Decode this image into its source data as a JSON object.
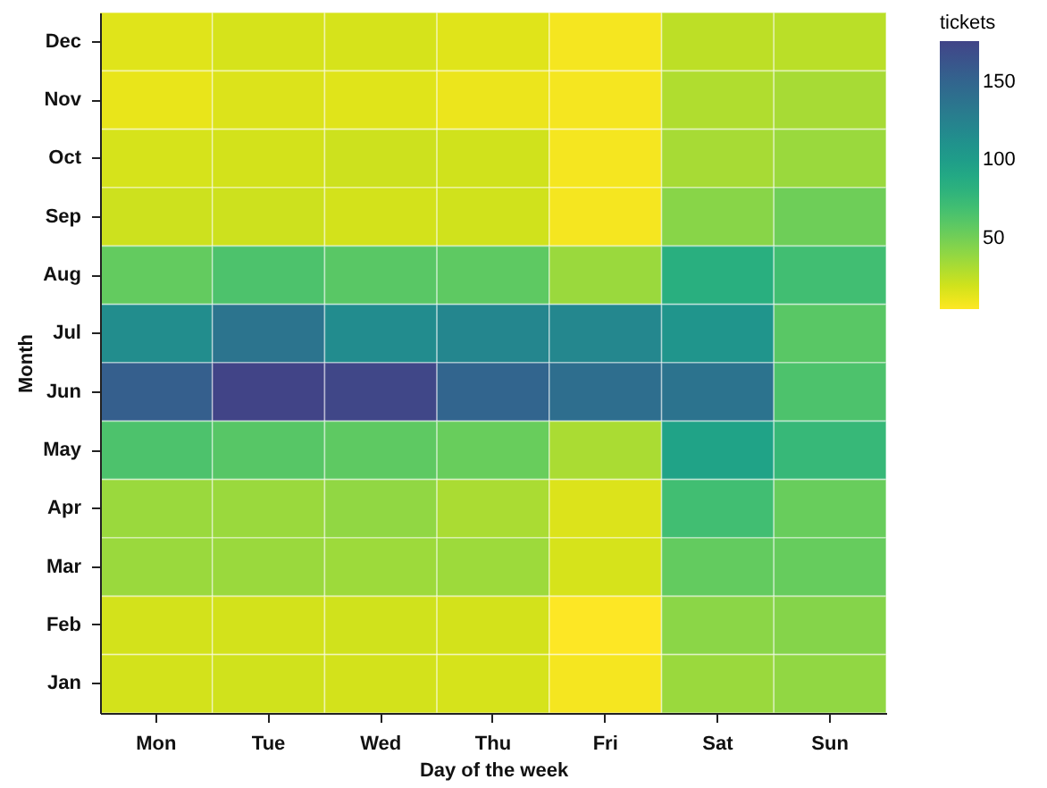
{
  "chart_data": {
    "type": "heatmap",
    "xlabel": "Day of the week",
    "ylabel": "Month",
    "legend_title": "tickets",
    "categories": [
      "Mon",
      "Tue",
      "Wed",
      "Thu",
      "Fri",
      "Sat",
      "Sun"
    ],
    "y_categories": [
      "Dec",
      "Nov",
      "Oct",
      "Sep",
      "Aug",
      "Jul",
      "Jun",
      "May",
      "Apr",
      "Mar",
      "Feb",
      "Jan"
    ],
    "cells": [
      [
        15,
        18,
        18,
        15,
        8,
        26,
        27
      ],
      [
        12,
        16,
        15,
        11,
        8,
        30,
        33
      ],
      [
        18,
        19,
        21,
        20,
        8,
        33,
        37
      ],
      [
        21,
        21,
        19,
        20,
        8,
        43,
        52
      ],
      [
        56,
        65,
        60,
        58,
        37,
        84,
        70
      ],
      [
        115,
        137,
        116,
        121,
        120,
        108,
        60
      ],
      [
        155,
        176,
        174,
        150,
        142,
        138,
        65
      ],
      [
        65,
        61,
        58,
        54,
        32,
        95,
        75
      ],
      [
        37,
        37,
        40,
        32,
        16,
        70,
        54
      ],
      [
        37,
        37,
        36,
        36,
        18,
        56,
        55
      ],
      [
        19,
        19,
        20,
        19,
        5,
        42,
        44
      ],
      [
        19,
        20,
        19,
        18,
        8,
        37,
        40
      ]
    ],
    "clim": [
      5,
      176
    ],
    "cticks": [
      50,
      100,
      150
    ]
  }
}
